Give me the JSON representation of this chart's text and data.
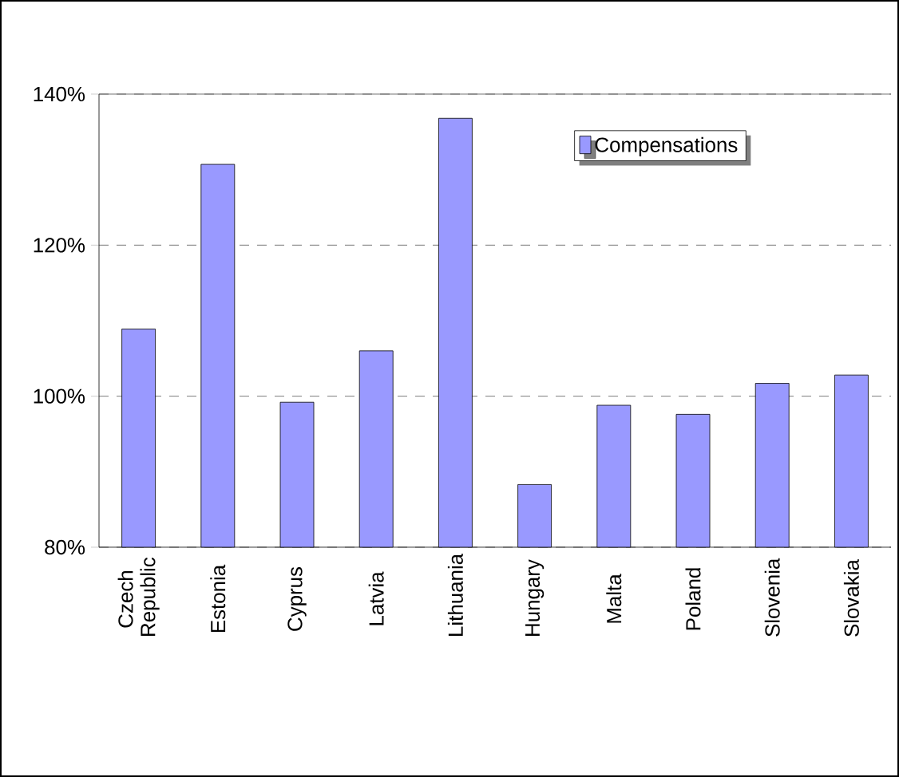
{
  "chart_data": {
    "type": "bar",
    "categories": [
      "Czech Republic",
      "Estonia",
      "Cyprus",
      "Latvia",
      "Lithuania",
      "Hungary",
      "Malta",
      "Poland",
      "Slovenia",
      "Slovakia"
    ],
    "series": [
      {
        "name": "Compensations",
        "color": "#9999ff",
        "values": [
          108.9,
          130.7,
          99.2,
          106.0,
          136.8,
          88.3,
          98.8,
          97.6,
          101.7,
          102.8
        ]
      }
    ],
    "ylim": [
      80,
      140
    ],
    "yticks": [
      {
        "value": 80,
        "label": "80%"
      },
      {
        "value": 100,
        "label": "100%"
      },
      {
        "value": 120,
        "label": "120%"
      },
      {
        "value": 140,
        "label": "140%"
      }
    ],
    "grid": "y",
    "legend": "top right"
  }
}
